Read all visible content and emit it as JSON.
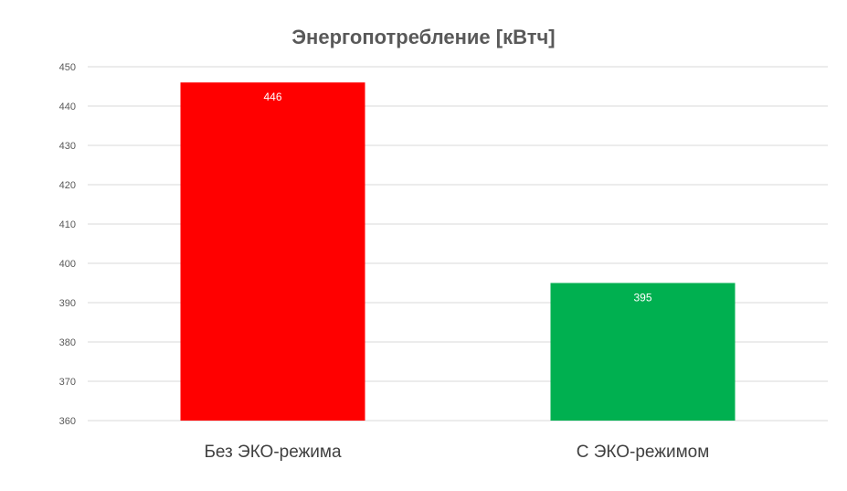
{
  "chart_data": {
    "type": "bar",
    "title": "Энергопотребление [кВтч]",
    "categories": [
      "Без ЭКО-режима",
      "С ЭКО-режимом"
    ],
    "values": [
      446,
      395
    ],
    "data_labels": [
      "446",
      "395"
    ],
    "bar_colors": [
      "#ff0000",
      "#00b050"
    ],
    "ylim": [
      360,
      450
    ],
    "yticks": [
      360,
      370,
      380,
      390,
      400,
      410,
      420,
      430,
      440,
      450
    ],
    "grid": true,
    "legend": "none",
    "xlabel": "",
    "ylabel": ""
  }
}
